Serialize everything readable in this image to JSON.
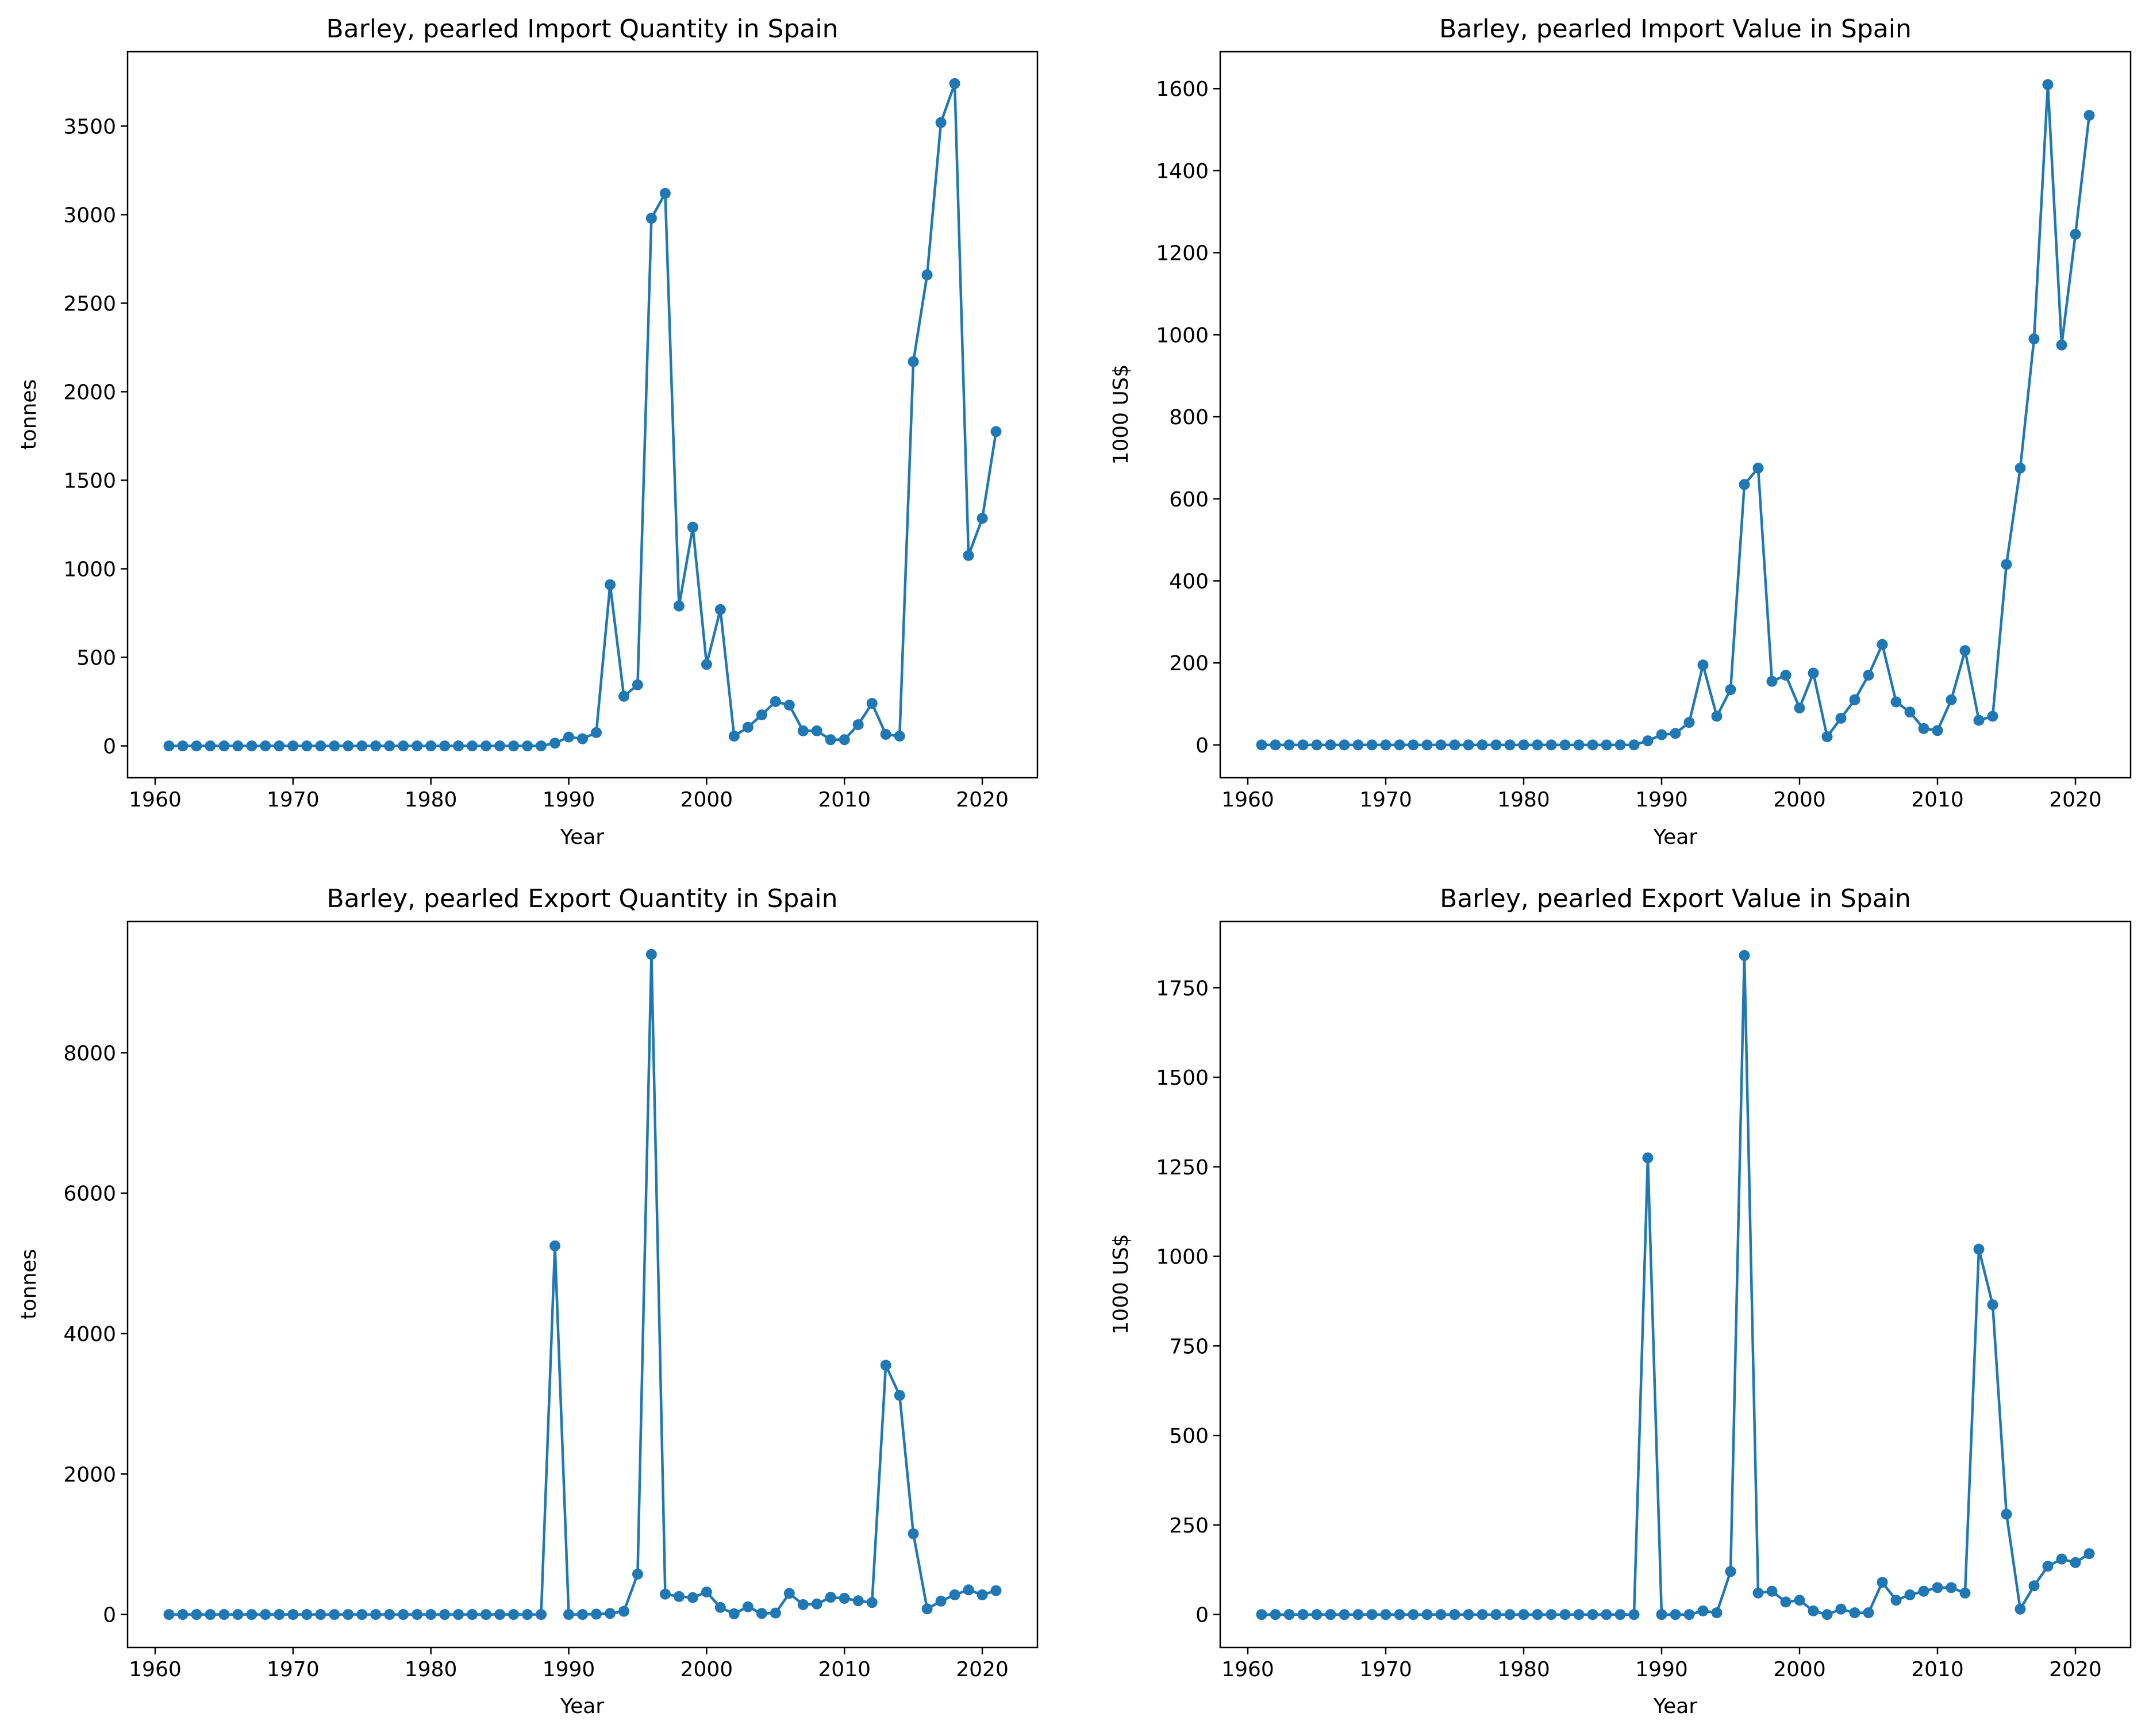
{
  "colors": {
    "series": "#1f77b4",
    "axes": "#000000",
    "background": "#ffffff"
  },
  "chart_data": [
    {
      "type": "line",
      "title": "Barley, pearled Import Quantity in Spain",
      "xlabel": "Year",
      "ylabel": "tonnes",
      "xlim": [
        1958,
        2024
      ],
      "ylim": [
        -180,
        3920
      ],
      "xticks": [
        1960,
        1970,
        1980,
        1990,
        2000,
        2010,
        2020
      ],
      "yticks": [
        0,
        500,
        1000,
        1500,
        2000,
        2500,
        3000,
        3500
      ],
      "grid": false,
      "marker": "circle",
      "x": [
        1961,
        1962,
        1963,
        1964,
        1965,
        1966,
        1967,
        1968,
        1969,
        1970,
        1971,
        1972,
        1973,
        1974,
        1975,
        1976,
        1977,
        1978,
        1979,
        1980,
        1981,
        1982,
        1983,
        1984,
        1985,
        1986,
        1987,
        1988,
        1989,
        1990,
        1991,
        1992,
        1993,
        1994,
        1995,
        1996,
        1997,
        1998,
        1999,
        2000,
        2001,
        2002,
        2003,
        2004,
        2005,
        2006,
        2007,
        2008,
        2009,
        2010,
        2011,
        2012,
        2013,
        2014,
        2015,
        2016,
        2017,
        2018,
        2019,
        2020,
        2021
      ],
      "y": [
        0,
        0,
        0,
        0,
        0,
        0,
        0,
        0,
        0,
        0,
        0,
        0,
        0,
        0,
        0,
        0,
        0,
        0,
        0,
        0,
        0,
        0,
        0,
        0,
        0,
        0,
        0,
        0,
        15,
        50,
        40,
        75,
        910,
        280,
        345,
        2980,
        3120,
        790,
        1235,
        460,
        770,
        55,
        105,
        175,
        250,
        230,
        85,
        85,
        35,
        35,
        120,
        240,
        65,
        55,
        2170,
        2660,
        3520,
        3740,
        1075,
        1285,
        1775
      ]
    },
    {
      "type": "line",
      "title": "Barley, pearled Import Value in Spain",
      "xlabel": "Year",
      "ylabel": "1000 US$",
      "xlim": [
        1958,
        2024
      ],
      "ylim": [
        -80,
        1690
      ],
      "xticks": [
        1960,
        1970,
        1980,
        1990,
        2000,
        2010,
        2020
      ],
      "yticks": [
        0,
        200,
        400,
        600,
        800,
        1000,
        1200,
        1400,
        1600
      ],
      "grid": false,
      "marker": "circle",
      "x": [
        1961,
        1962,
        1963,
        1964,
        1965,
        1966,
        1967,
        1968,
        1969,
        1970,
        1971,
        1972,
        1973,
        1974,
        1975,
        1976,
        1977,
        1978,
        1979,
        1980,
        1981,
        1982,
        1983,
        1984,
        1985,
        1986,
        1987,
        1988,
        1989,
        1990,
        1991,
        1992,
        1993,
        1994,
        1995,
        1996,
        1997,
        1998,
        1999,
        2000,
        2001,
        2002,
        2003,
        2004,
        2005,
        2006,
        2007,
        2008,
        2009,
        2010,
        2011,
        2012,
        2013,
        2014,
        2015,
        2016,
        2017,
        2018,
        2019,
        2020,
        2021
      ],
      "y": [
        0,
        0,
        0,
        0,
        0,
        0,
        0,
        0,
        0,
        0,
        0,
        0,
        0,
        0,
        0,
        0,
        0,
        0,
        0,
        0,
        0,
        0,
        0,
        0,
        0,
        0,
        0,
        0,
        10,
        25,
        28,
        55,
        195,
        70,
        135,
        635,
        675,
        155,
        170,
        90,
        175,
        20,
        65,
        110,
        170,
        245,
        105,
        80,
        40,
        35,
        110,
        230,
        60,
        70,
        440,
        675,
        990,
        1610,
        975,
        1245,
        1535
      ]
    },
    {
      "type": "line",
      "title": "Barley, pearled Export Quantity in Spain",
      "xlabel": "Year",
      "ylabel": "tonnes",
      "xlim": [
        1958,
        2024
      ],
      "ylim": [
        -470,
        9870
      ],
      "xticks": [
        1960,
        1970,
        1980,
        1990,
        2000,
        2010,
        2020
      ],
      "yticks": [
        0,
        2000,
        4000,
        6000,
        8000
      ],
      "grid": false,
      "marker": "circle",
      "x": [
        1961,
        1962,
        1963,
        1964,
        1965,
        1966,
        1967,
        1968,
        1969,
        1970,
        1971,
        1972,
        1973,
        1974,
        1975,
        1976,
        1977,
        1978,
        1979,
        1980,
        1981,
        1982,
        1983,
        1984,
        1985,
        1986,
        1987,
        1988,
        1989,
        1990,
        1991,
        1992,
        1993,
        1994,
        1995,
        1996,
        1997,
        1998,
        1999,
        2000,
        2001,
        2002,
        2003,
        2004,
        2005,
        2006,
        2007,
        2008,
        2009,
        2010,
        2011,
        2012,
        2013,
        2014,
        2015,
        2016,
        2017,
        2018,
        2019,
        2020,
        2021
      ],
      "y": [
        0,
        0,
        0,
        0,
        0,
        0,
        0,
        0,
        0,
        0,
        0,
        0,
        0,
        0,
        0,
        0,
        0,
        0,
        0,
        0,
        0,
        0,
        0,
        0,
        0,
        0,
        0,
        0,
        5250,
        0,
        0,
        5,
        15,
        45,
        575,
        9400,
        290,
        255,
        240,
        320,
        100,
        10,
        110,
        15,
        20,
        300,
        140,
        150,
        245,
        230,
        195,
        170,
        3550,
        3120,
        1150,
        80,
        190,
        280,
        350,
        280,
        340
      ]
    },
    {
      "type": "line",
      "title": "Barley, pearled Export Value in Spain",
      "xlabel": "Year",
      "ylabel": "1000 US$",
      "xlim": [
        1958,
        2024
      ],
      "ylim": [
        -92,
        1935
      ],
      "xticks": [
        1960,
        1970,
        1980,
        1990,
        2000,
        2010,
        2020
      ],
      "yticks": [
        0,
        250,
        500,
        750,
        1000,
        1250,
        1500,
        1750
      ],
      "grid": false,
      "marker": "circle",
      "x": [
        1961,
        1962,
        1963,
        1964,
        1965,
        1966,
        1967,
        1968,
        1969,
        1970,
        1971,
        1972,
        1973,
        1974,
        1975,
        1976,
        1977,
        1978,
        1979,
        1980,
        1981,
        1982,
        1983,
        1984,
        1985,
        1986,
        1987,
        1988,
        1989,
        1990,
        1991,
        1992,
        1993,
        1994,
        1995,
        1996,
        1997,
        1998,
        1999,
        2000,
        2001,
        2002,
        2003,
        2004,
        2005,
        2006,
        2007,
        2008,
        2009,
        2010,
        2011,
        2012,
        2013,
        2014,
        2015,
        2016,
        2017,
        2018,
        2019,
        2020,
        2021
      ],
      "y": [
        0,
        0,
        0,
        0,
        0,
        0,
        0,
        0,
        0,
        0,
        0,
        0,
        0,
        0,
        0,
        0,
        0,
        0,
        0,
        0,
        0,
        0,
        0,
        0,
        0,
        0,
        0,
        0,
        1275,
        0,
        0,
        0,
        10,
        5,
        120,
        1840,
        60,
        65,
        35,
        40,
        10,
        0,
        15,
        5,
        5,
        90,
        40,
        55,
        65,
        75,
        75,
        60,
        1020,
        865,
        280,
        15,
        80,
        135,
        155,
        145,
        170
      ]
    }
  ]
}
